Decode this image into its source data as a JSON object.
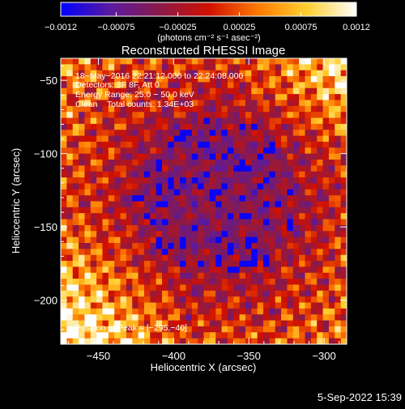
{
  "chart_data": {
    "type": "heatmap",
    "title": "Reconstructed RHESSI Image",
    "xlabel": "Heliocentric X (arcsec)",
    "ylabel": "Heliocentric Y (arcsec)",
    "xlim": [
      -475,
      -285
    ],
    "ylim": [
      -230,
      -35
    ],
    "x_ticks": [
      -450,
      -400,
      -350,
      -300
    ],
    "y_ticks": [
      -200,
      -150,
      -100,
      -50
    ],
    "x_tick_labels": [
      "−450",
      "−400",
      "−350",
      "−300"
    ],
    "y_tick_labels": [
      "−200",
      "−150",
      "−100",
      "−50"
    ],
    "colorbar": {
      "range": [
        -0.0012,
        0.0012
      ],
      "ticks": [
        -0.0012,
        -0.00075,
        -0.00025,
        0.00025,
        0.00075,
        0.0012
      ],
      "tick_labels": [
        "−0.0012",
        "−0.00075",
        "−0.00025",
        "0.00025",
        "0.00075",
        "0.0012"
      ],
      "unit_label": "(photons cm⁻² s⁻¹ asec⁻²)",
      "colormap": [
        "#0000ff",
        "#5a1aa0",
        "#8a1a4a",
        "#d01000",
        "#ff7a00",
        "#ffd030",
        "#ffffff"
      ]
    },
    "annotations": {
      "time_range": "18−May−2016 22:21:12.000 to 22:24:08.000",
      "detectors": "Detectors: 3F 8F, Att 0",
      "energy": "Energy Range: 25.0 − 50.0 keV",
      "clean": "Clean    Total counts: 1.34E+03",
      "peak": "Position of Peak = [−295,−40]"
    },
    "grid": false
  },
  "footer": {
    "date": "5-Sep-2022 15:39"
  }
}
